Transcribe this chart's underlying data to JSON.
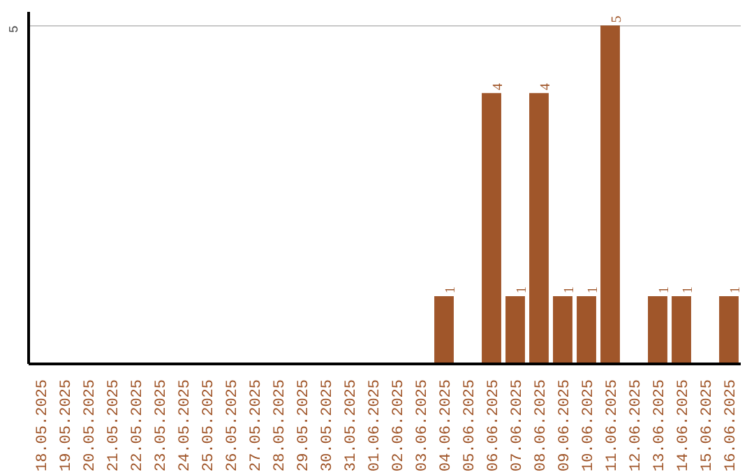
{
  "chart_data": {
    "type": "bar",
    "categories": [
      "18.05.2025",
      "19.05.2025",
      "20.05.2025",
      "21.05.2025",
      "22.05.2025",
      "23.05.2025",
      "24.05.2025",
      "25.05.2025",
      "26.05.2025",
      "27.05.2025",
      "28.05.2025",
      "29.05.2025",
      "30.05.2025",
      "31.05.2025",
      "01.06.2025",
      "02.06.2025",
      "03.06.2025",
      "04.06.2025",
      "05.06.2025",
      "06.06.2025",
      "07.06.2025",
      "08.06.2025",
      "09.06.2025",
      "10.06.2025",
      "11.06.2025",
      "12.06.2025",
      "13.06.2025",
      "14.06.2025",
      "15.06.2025",
      "16.06.2025"
    ],
    "values": [
      null,
      null,
      null,
      null,
      null,
      null,
      null,
      null,
      null,
      null,
      null,
      null,
      null,
      null,
      null,
      null,
      null,
      1,
      null,
      4,
      1,
      4,
      1,
      1,
      5,
      null,
      1,
      1,
      null,
      1
    ],
    "color": "#a0562a",
    "ylim": [
      0,
      5.2
    ],
    "yticks": [
      5
    ],
    "grid": "y",
    "data_labels": true
  }
}
